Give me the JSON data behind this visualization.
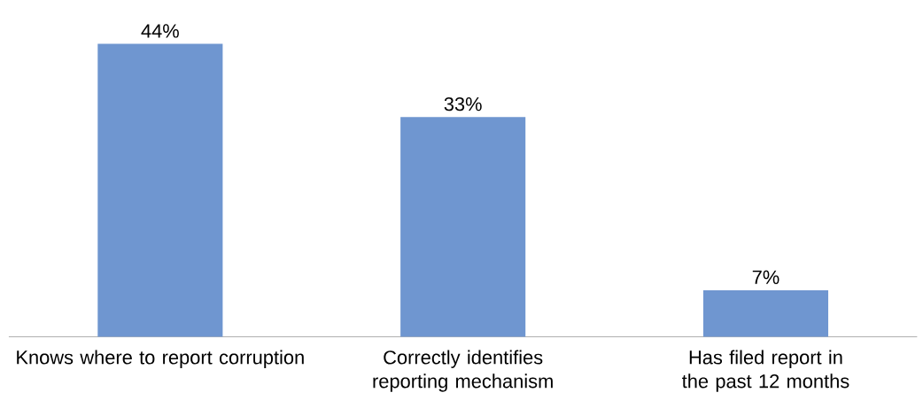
{
  "chart_data": {
    "type": "bar",
    "categories": [
      "Knows where to report corruption",
      "Correctly identifies reporting mechanism",
      "Has filed report in the past 12 months"
    ],
    "values": [
      44,
      33,
      7
    ],
    "value_labels": [
      "44%",
      "33%",
      "7%"
    ],
    "color": "#6f96d0"
  }
}
